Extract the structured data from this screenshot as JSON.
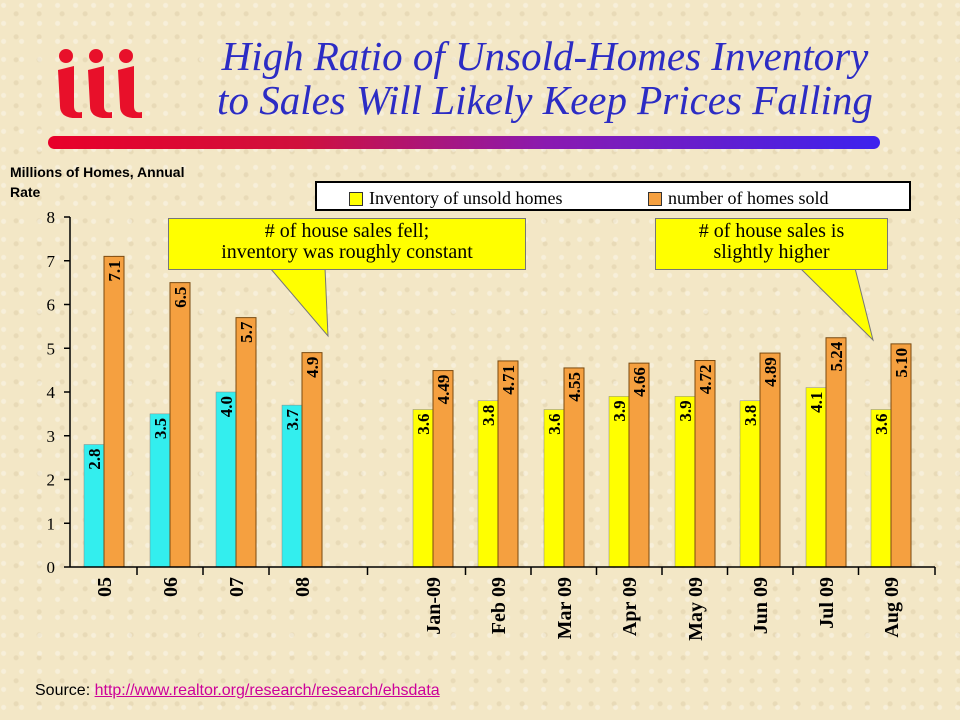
{
  "title_line1": "High Ratio of Unsold-Homes Inventory",
  "title_line2": "to Sales Will Likely Keep Prices Falling",
  "logo_text": "iii",
  "source_label": "Source:",
  "source_link": "http://www.realtor.org/research/research/ehsdata",
  "callouts": {
    "left": [
      "# of house sales fell;",
      "inventory was roughly constant"
    ],
    "right": [
      "# of house sales is",
      "slightly higher"
    ]
  },
  "colors": {
    "title": "#2c2cc4",
    "inventory_annual": "#33eeee",
    "inventory_monthly": "#ffff00",
    "sold": "#f5a040",
    "callout": "#ffff00"
  },
  "chart_data": {
    "type": "bar",
    "ylabel": "Millions of Homes, Annual Rate",
    "ylim": [
      0,
      8
    ],
    "yticks": [
      "0",
      "1",
      "2",
      "3",
      "4",
      "5",
      "6",
      "7",
      "8"
    ],
    "grid": false,
    "legend_position": "top",
    "categories": [
      "05",
      "06",
      "07",
      "08",
      "Jan-09",
      "Feb 09",
      "Mar 09",
      "Apr 09",
      "May 09",
      "Jun 09",
      "Jul 09",
      "Aug 09"
    ],
    "series": [
      {
        "name": "Inventory of unsold homes",
        "values": [
          2.8,
          3.5,
          4.0,
          3.7,
          3.6,
          3.8,
          3.6,
          3.9,
          3.9,
          3.8,
          4.1,
          3.6
        ],
        "labels": [
          "2.8",
          "3.5",
          "4.0",
          "3.7",
          "3.6",
          "3.8",
          "3.6",
          "3.9",
          "3.9",
          "3.8",
          "4.1",
          "3.6"
        ]
      },
      {
        "name": "number of homes sold",
        "values": [
          7.1,
          6.5,
          5.7,
          4.9,
          4.49,
          4.71,
          4.55,
          4.66,
          4.72,
          4.89,
          5.24,
          5.1
        ],
        "labels": [
          "7.1",
          "6.5",
          "5.7",
          "4.9",
          "4.49",
          "4.71",
          "4.55",
          "4.66",
          "4.72",
          "4.89",
          "5.24",
          "5.10"
        ]
      }
    ]
  }
}
